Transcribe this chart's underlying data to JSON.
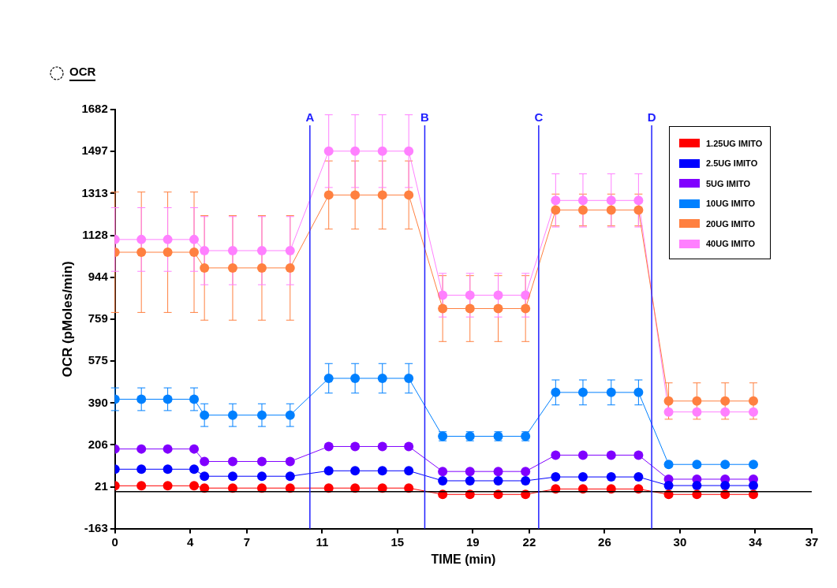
{
  "chart_data": {
    "type": "line",
    "title": "OCR",
    "xlabel": "TIME (min)",
    "ylabel": "OCR (pMoles/min)",
    "x": [
      0,
      1.4,
      2.8,
      4.2,
      4.75,
      6.25,
      7.8,
      9.3,
      11.35,
      12.75,
      14.2,
      15.6,
      17.4,
      18.85,
      20.35,
      21.8,
      23.4,
      24.85,
      26.35,
      27.8,
      29.4,
      30.9,
      32.4,
      33.9
    ],
    "series": [
      {
        "name": "1.25UG IMITO",
        "color": "#ff0000",
        "values": [
          26,
          26,
          26,
          26,
          16,
          16,
          16,
          16,
          16,
          16,
          16,
          16,
          -12,
          -12,
          -12,
          -12,
          12,
          12,
          12,
          12,
          -12,
          -12,
          -12,
          -12
        ]
      },
      {
        "name": "2.5UG IMITO",
        "color": "#0000ff",
        "values": [
          99,
          99,
          99,
          99,
          68,
          68,
          68,
          68,
          92,
          92,
          92,
          92,
          48,
          48,
          48,
          48,
          65,
          65,
          65,
          65,
          27,
          27,
          27,
          27
        ]
      },
      {
        "name": "5UG IMITO",
        "color": "#8000ff",
        "values": [
          188,
          188,
          188,
          188,
          133,
          133,
          133,
          133,
          199,
          199,
          199,
          199,
          89,
          89,
          89,
          89,
          161,
          161,
          161,
          161,
          55,
          55,
          55,
          55
        ]
      },
      {
        "name": "10UG IMITO",
        "color": "#0080ff",
        "values": [
          407,
          407,
          407,
          407,
          337,
          337,
          337,
          337,
          499,
          499,
          499,
          499,
          244,
          244,
          244,
          244,
          437,
          437,
          437,
          437,
          120,
          120,
          120,
          120
        ],
        "errors": [
          50,
          50,
          50,
          50,
          50,
          50,
          50,
          50,
          65,
          65,
          65,
          65,
          20,
          20,
          20,
          20,
          55,
          55,
          55,
          55,
          null,
          null,
          null,
          null
        ]
      },
      {
        "name": "20UG IMITO",
        "color": "#ff8040",
        "values": [
          1054,
          1054,
          1054,
          1054,
          985,
          985,
          985,
          985,
          1306,
          1306,
          1306,
          1306,
          806,
          806,
          806,
          806,
          1240,
          1240,
          1240,
          1240,
          399,
          399,
          399,
          399
        ],
        "errors": [
          265,
          265,
          265,
          265,
          230,
          230,
          230,
          230,
          150,
          150,
          150,
          150,
          145,
          145,
          145,
          145,
          70,
          70,
          70,
          70,
          80,
          80,
          80,
          80
        ]
      },
      {
        "name": "40UG IMITO",
        "color": "#ff80ff",
        "values": [
          1110,
          1110,
          1110,
          1110,
          1061,
          1061,
          1061,
          1061,
          1499,
          1499,
          1499,
          1499,
          865,
          865,
          865,
          865,
          1282,
          1282,
          1282,
          1282,
          351,
          351,
          351,
          351
        ],
        "errors": [
          140,
          140,
          140,
          140,
          150,
          150,
          150,
          150,
          160,
          160,
          160,
          160,
          96,
          96,
          96,
          96,
          117,
          117,
          117,
          117,
          null,
          null,
          null,
          null
        ]
      }
    ],
    "xlim": [
      0,
      37
    ],
    "xticks": [
      0,
      4,
      7,
      11,
      15,
      19,
      22,
      26,
      30,
      34,
      37
    ],
    "ylim": [
      -163,
      1682
    ],
    "yticks": [
      -163,
      21,
      206,
      390,
      575,
      759,
      944,
      1128,
      1313,
      1497,
      1682
    ],
    "ref_lines": [
      {
        "axis": "y",
        "value": 0,
        "label": null,
        "color": "#000000"
      },
      {
        "axis": "x",
        "value": 10.35,
        "label": "A",
        "color": "#2020ff"
      },
      {
        "axis": "x",
        "value": 16.45,
        "label": "B",
        "color": "#2020ff"
      },
      {
        "axis": "x",
        "value": 22.5,
        "label": "C",
        "color": "#2020ff"
      },
      {
        "axis": "x",
        "value": 28.5,
        "label": "D",
        "color": "#2020ff"
      }
    ],
    "grid": false,
    "legend": "top right",
    "marker": "circle",
    "line_style": "solid"
  }
}
